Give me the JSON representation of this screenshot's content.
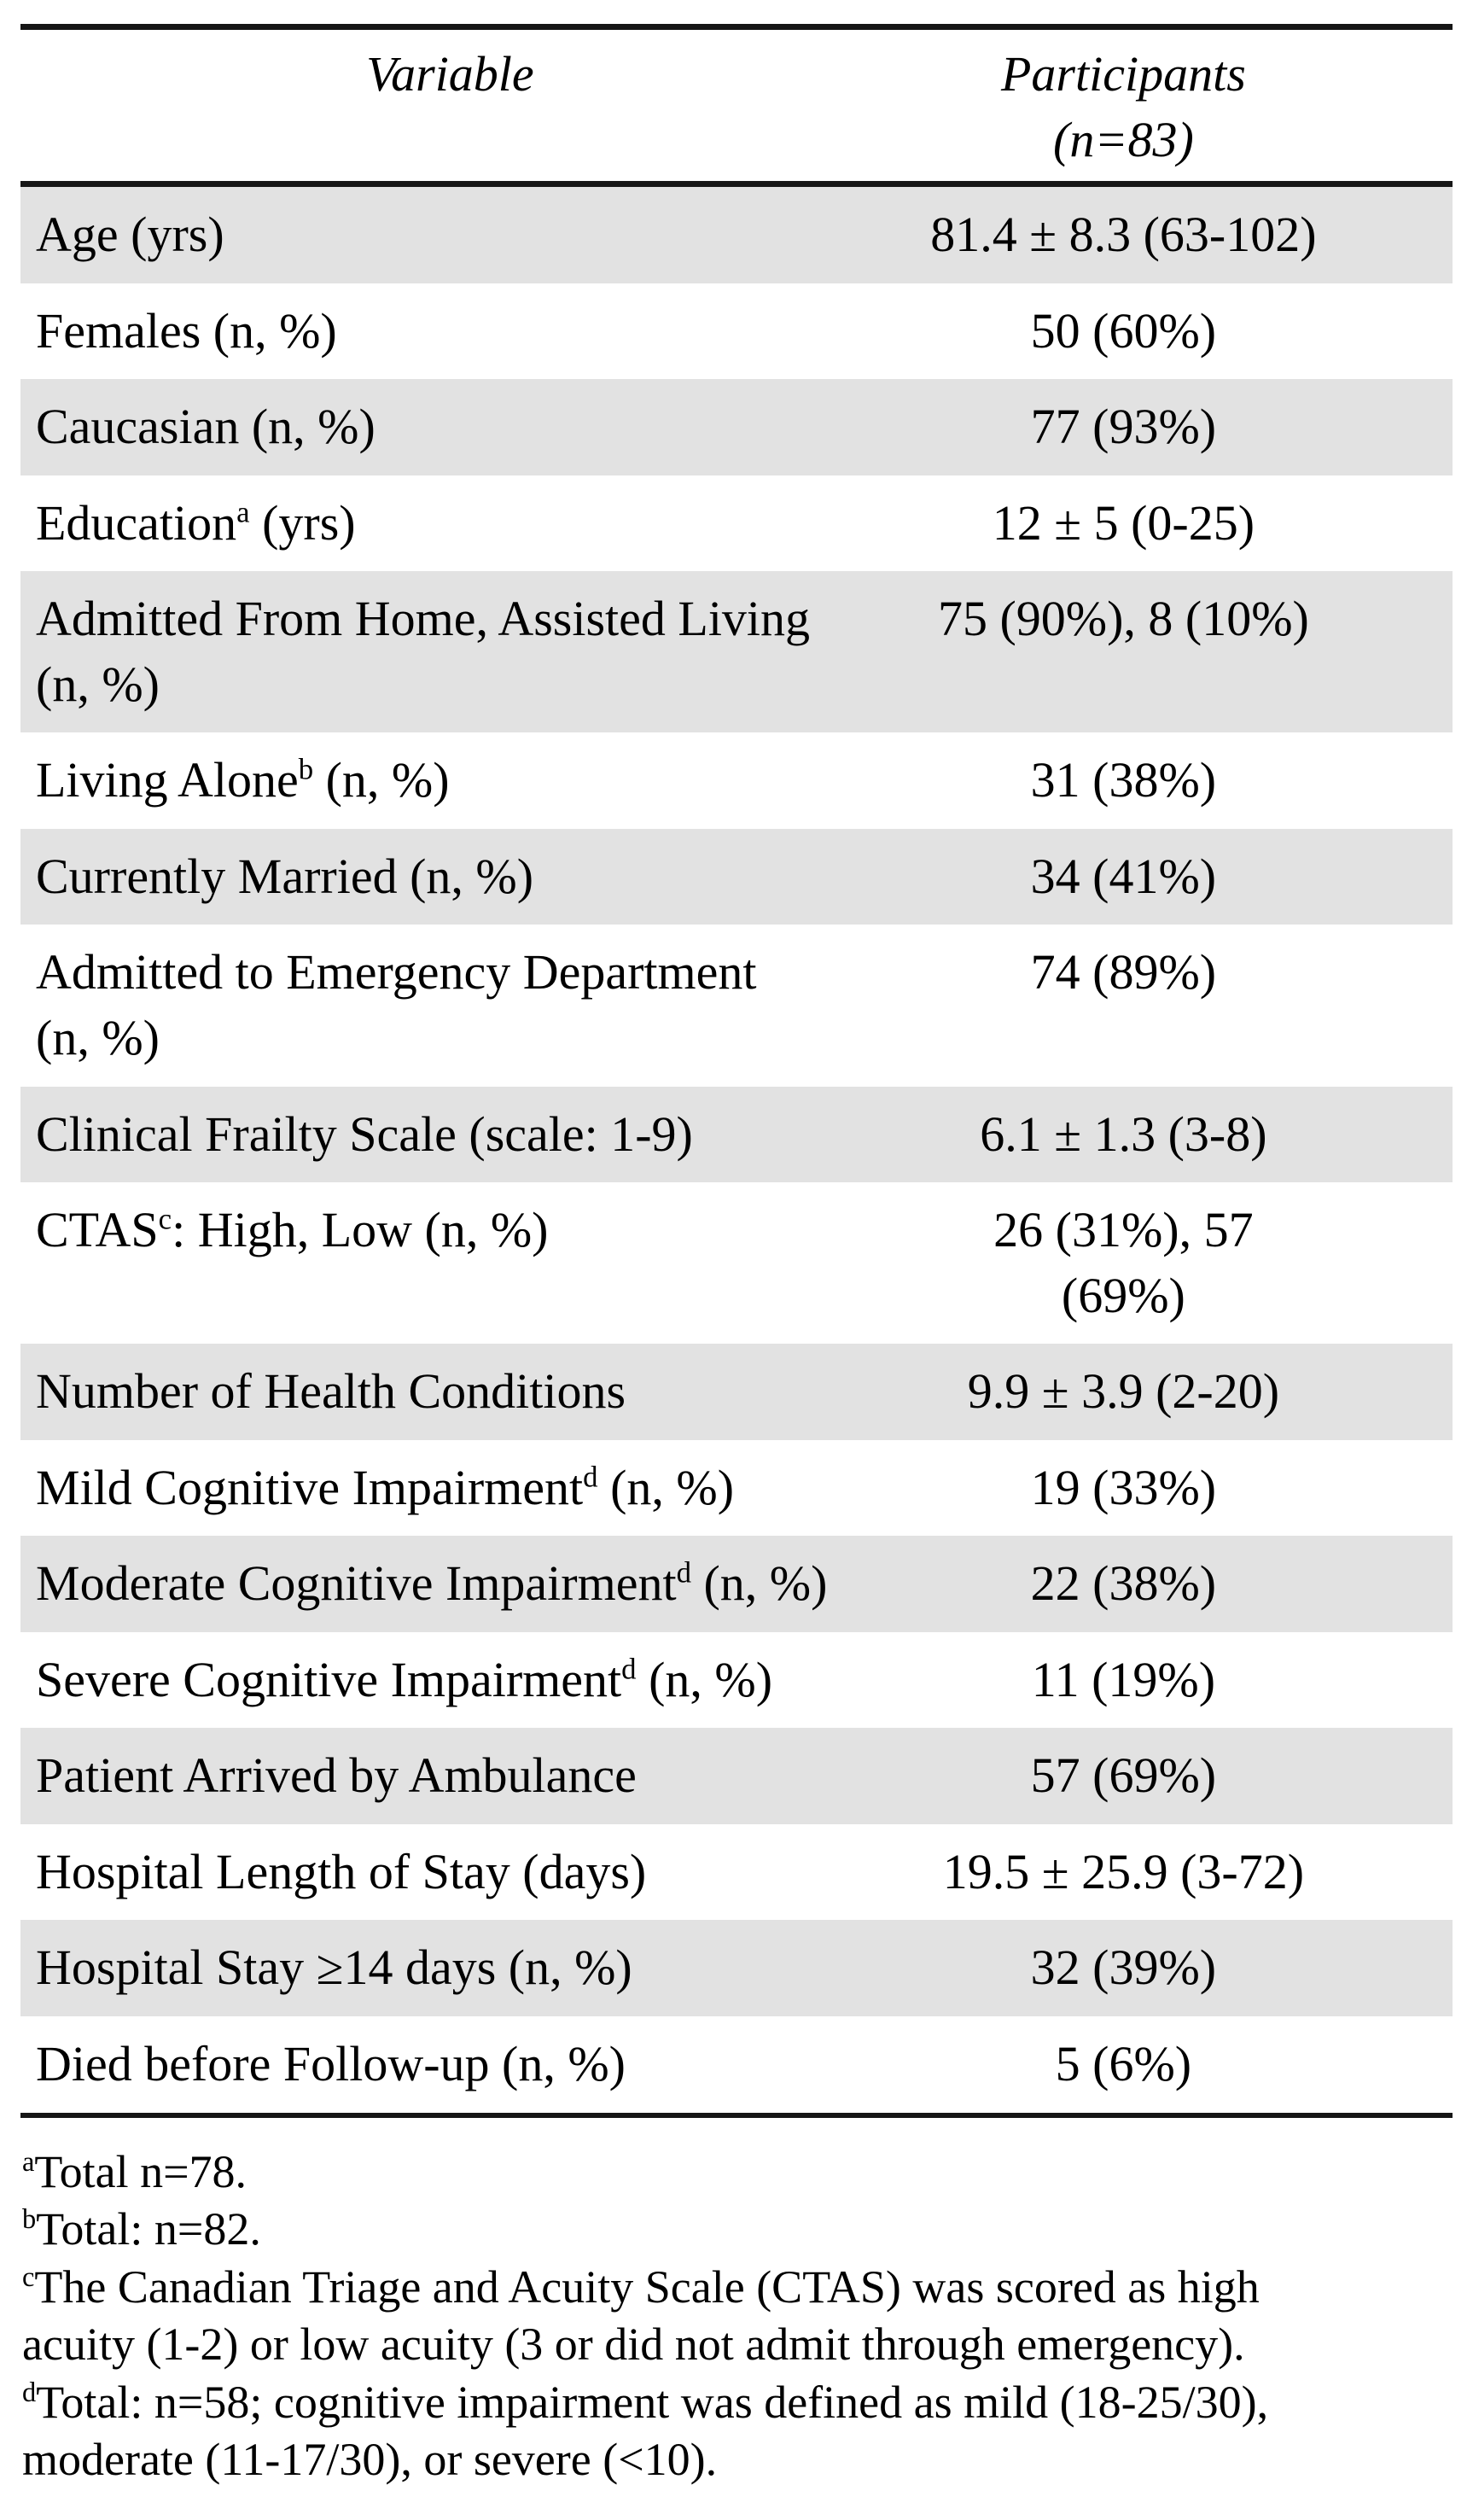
{
  "table": {
    "header": {
      "variable": "Variable",
      "participants": "Participants\n(n=83)"
    },
    "rows": [
      {
        "label_pre": "Age (yrs)",
        "label_sup": "",
        "label_post": "",
        "value": "81.4 ± 8.3 (63-102)",
        "shaded": true
      },
      {
        "label_pre": "Females (n, %)",
        "label_sup": "",
        "label_post": "",
        "value": "50 (60%)",
        "shaded": false
      },
      {
        "label_pre": "Caucasian (n, %)",
        "label_sup": "",
        "label_post": "",
        "value": "77 (93%)",
        "shaded": true
      },
      {
        "label_pre": "Education",
        "label_sup": "a",
        "label_post": " (yrs)",
        "value": "12 ± 5 (0-25)",
        "shaded": false
      },
      {
        "label_pre": "Admitted From Home, Assisted Living\n(n, %)",
        "label_sup": "",
        "label_post": "",
        "value": "75 (90%), 8 (10%)",
        "shaded": true
      },
      {
        "label_pre": "Living Alone",
        "label_sup": "b",
        "label_post": " (n, %)",
        "value": "31 (38%)",
        "shaded": false
      },
      {
        "label_pre": "Currently Married (n, %)",
        "label_sup": "",
        "label_post": "",
        "value": "34 (41%)",
        "shaded": true
      },
      {
        "label_pre": "Admitted to Emergency Department\n(n, %)",
        "label_sup": "",
        "label_post": "",
        "value": "74 (89%)",
        "shaded": false
      },
      {
        "label_pre": "Clinical Frailty Scale (scale: 1-9)",
        "label_sup": "",
        "label_post": "",
        "value": "6.1 ± 1.3 (3-8)",
        "shaded": true
      },
      {
        "label_pre": "CTAS",
        "label_sup": "c",
        "label_post": ": High, Low (n, %)",
        "value": "26 (31%), 57\n(69%)",
        "shaded": false
      },
      {
        "label_pre": "Number of Health Conditions",
        "label_sup": "",
        "label_post": "",
        "value": "9.9 ± 3.9 (2-20)",
        "shaded": true
      },
      {
        "label_pre": "Mild Cognitive Impairment",
        "label_sup": "d",
        "label_post": " (n, %)",
        "value": "19 (33%)",
        "shaded": false
      },
      {
        "label_pre": "Moderate Cognitive Impairment",
        "label_sup": "d",
        "label_post": " (n, %)",
        "value": "22 (38%)",
        "shaded": true
      },
      {
        "label_pre": "Severe Cognitive Impairment",
        "label_sup": "d",
        "label_post": " (n, %)",
        "value": "11 (19%)",
        "shaded": false
      },
      {
        "label_pre": "Patient Arrived by Ambulance",
        "label_sup": "",
        "label_post": "",
        "value": "57 (69%)",
        "shaded": true
      },
      {
        "label_pre": "Hospital Length of Stay (days)",
        "label_sup": "",
        "label_post": "",
        "value": "19.5 ± 25.9 (3-72)",
        "shaded": false
      },
      {
        "label_pre": "Hospital Stay ≥14 days (n, %)",
        "label_sup": "",
        "label_post": "",
        "value": "32 (39%)",
        "shaded": true
      },
      {
        "label_pre": "Died before Follow-up (n, %)",
        "label_sup": "",
        "label_post": "",
        "value": "5 (6%)",
        "shaded": false
      }
    ],
    "footnotes": [
      {
        "sup": "a",
        "text": "Total n=78."
      },
      {
        "sup": "b",
        "text": "Total: n=82."
      },
      {
        "sup": "c",
        "text": "The Canadian Triage and Acuity Scale (CTAS) was scored as high\nacuity (1-2) or low acuity (3 or did not admit through emergency)."
      },
      {
        "sup": "d",
        "text": "Total: n=58; cognitive impairment was defined as mild (18-25/30),\nmoderate (11-17/30), or severe (<10)."
      }
    ],
    "colors": {
      "row_shade": "#e2e2e2",
      "rule": "#161616",
      "text": "#000000",
      "background": "#ffffff"
    }
  }
}
